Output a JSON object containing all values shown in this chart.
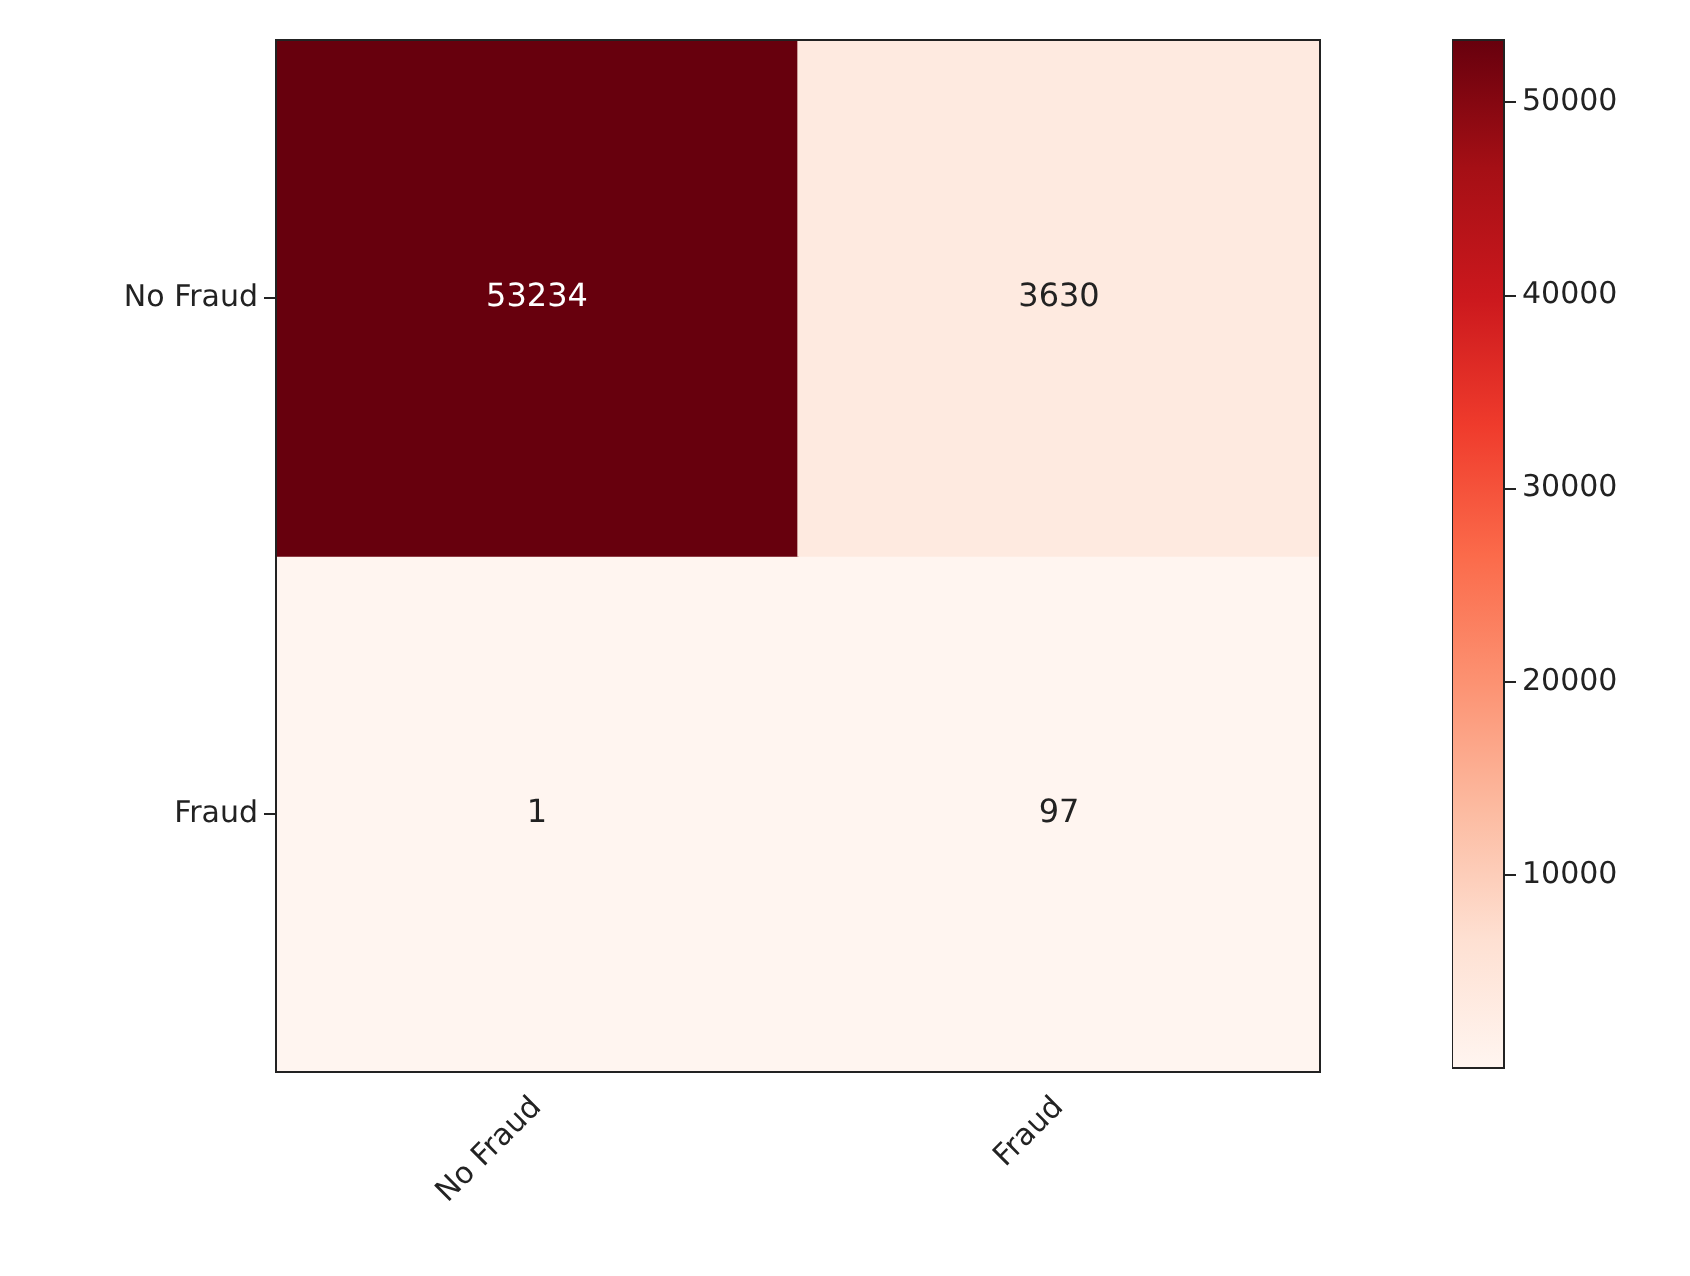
{
  "chart_data": {
    "type": "heatmap",
    "categories": [
      "No Fraud",
      "Fraud"
    ],
    "y_categories": [
      "No Fraud",
      "Fraud"
    ],
    "cells": [
      [
        53234,
        3630
      ],
      [
        1,
        97
      ]
    ],
    "clim": [
      1,
      53234
    ],
    "cticks": [
      10000,
      20000,
      30000,
      40000,
      50000
    ],
    "data_labels": true,
    "grid": false
  }
}
